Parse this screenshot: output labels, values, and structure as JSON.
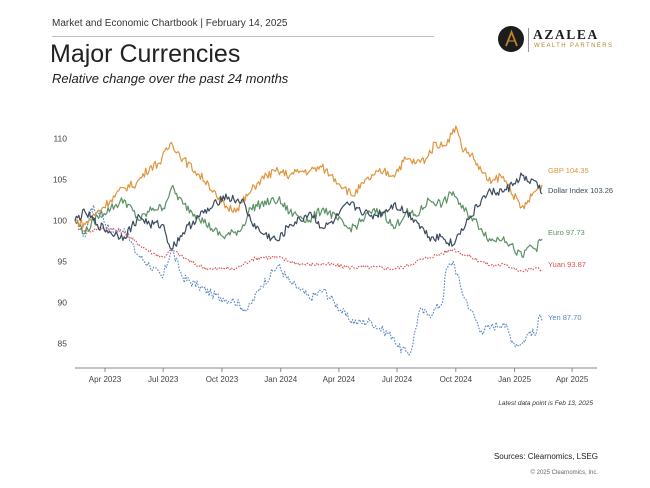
{
  "header": {
    "line": "Market and Economic Chartbook | February 14, 2025",
    "title": "Major Currencies",
    "subtitle": "Relative change over the past 24 months"
  },
  "logo": {
    "name": "AZALEA",
    "tagline": "WEALTH PARTNERS",
    "accent": "#b8842e"
  },
  "footer": {
    "footnote": "Latest data point is Feb 13, 2025",
    "sources": "Sources: Clearnomics, LSEG",
    "copyright": "© 2025 Clearnomics, Inc."
  },
  "chart_data": {
    "type": "line",
    "x_range": [
      "2023-02-13",
      "2025-05-10"
    ],
    "ylim": [
      82,
      112
    ],
    "yticks": [
      85,
      90,
      95,
      100,
      105,
      110
    ],
    "xticks": [
      {
        "date": "2023-04-01",
        "label": "Apr 2023"
      },
      {
        "date": "2023-07-01",
        "label": "Jul 2023"
      },
      {
        "date": "2023-10-01",
        "label": "Oct 2023"
      },
      {
        "date": "2024-01-01",
        "label": "Jan 2024"
      },
      {
        "date": "2024-04-01",
        "label": "Apr 2024"
      },
      {
        "date": "2024-07-01",
        "label": "Jul 2024"
      },
      {
        "date": "2024-10-01",
        "label": "Oct 2024"
      },
      {
        "date": "2025-01-01",
        "label": "Jan 2025"
      },
      {
        "date": "2025-04-01",
        "label": "Apr 2025"
      }
    ],
    "grid": false,
    "legend": "end labels",
    "series": [
      {
        "name": "GBP",
        "end_label": "GBP 104.35",
        "color": "#e0953f",
        "style": "solid",
        "points": [
          [
            "2023-02-13",
            100
          ],
          [
            "2023-03-01",
            99.5
          ],
          [
            "2023-03-20",
            101
          ],
          [
            "2023-04-10",
            102.5
          ],
          [
            "2023-05-01",
            104
          ],
          [
            "2023-05-20",
            104.5
          ],
          [
            "2023-06-10",
            106.5
          ],
          [
            "2023-06-25",
            107
          ],
          [
            "2023-07-14",
            109.5
          ],
          [
            "2023-08-01",
            107.5
          ],
          [
            "2023-08-20",
            106
          ],
          [
            "2023-09-10",
            104.5
          ],
          [
            "2023-09-25",
            102.5
          ],
          [
            "2023-10-10",
            101.5
          ],
          [
            "2023-10-25",
            101.5
          ],
          [
            "2023-11-10",
            103
          ],
          [
            "2023-11-25",
            104.5
          ],
          [
            "2023-12-10",
            105.5
          ],
          [
            "2023-12-28",
            106
          ],
          [
            "2024-01-15",
            105.5
          ],
          [
            "2024-01-31",
            106
          ],
          [
            "2024-02-15",
            106
          ],
          [
            "2024-03-05",
            106.5
          ],
          [
            "2024-03-20",
            105.5
          ],
          [
            "2024-04-10",
            104
          ],
          [
            "2024-04-22",
            103
          ],
          [
            "2024-05-10",
            104.5
          ],
          [
            "2024-05-25",
            105.5
          ],
          [
            "2024-06-10",
            106
          ],
          [
            "2024-06-25",
            105.5
          ],
          [
            "2024-07-15",
            107.5
          ],
          [
            "2024-07-31",
            107
          ],
          [
            "2024-08-15",
            107.5
          ],
          [
            "2024-08-31",
            109.5
          ],
          [
            "2024-09-10",
            109
          ],
          [
            "2024-09-25",
            110.5
          ],
          [
            "2024-10-01",
            111.5
          ],
          [
            "2024-10-10",
            109
          ],
          [
            "2024-10-25",
            108
          ],
          [
            "2024-11-10",
            106
          ],
          [
            "2024-11-25",
            104.5
          ],
          [
            "2024-12-10",
            105.5
          ],
          [
            "2024-12-25",
            104
          ],
          [
            "2025-01-10",
            101.5
          ],
          [
            "2025-01-20",
            102
          ],
          [
            "2025-02-01",
            103.5
          ],
          [
            "2025-02-13",
            104.35
          ]
        ]
      },
      {
        "name": "Dollar Index",
        "end_label": "Dollar Index 103.26",
        "color": "#3b4a5e",
        "style": "solid",
        "points": [
          [
            "2023-02-13",
            100
          ],
          [
            "2023-03-01",
            101
          ],
          [
            "2023-03-20",
            99.5
          ],
          [
            "2023-04-10",
            98.5
          ],
          [
            "2023-05-01",
            98
          ],
          [
            "2023-05-25",
            100.5
          ],
          [
            "2023-06-10",
            99.5
          ],
          [
            "2023-06-30",
            99.5
          ],
          [
            "2023-07-14",
            96.5
          ],
          [
            "2023-08-01",
            98.5
          ],
          [
            "2023-08-25",
            100.5
          ],
          [
            "2023-09-15",
            101.5
          ],
          [
            "2023-10-03",
            103
          ],
          [
            "2023-10-20",
            102.5
          ],
          [
            "2023-11-01",
            102.5
          ],
          [
            "2023-11-15",
            100
          ],
          [
            "2023-12-01",
            98.5
          ],
          [
            "2023-12-28",
            97.5
          ],
          [
            "2024-01-15",
            99.5
          ],
          [
            "2024-02-01",
            100
          ],
          [
            "2024-02-15",
            101
          ],
          [
            "2024-03-08",
            99
          ],
          [
            "2024-03-25",
            100
          ],
          [
            "2024-04-16",
            102
          ],
          [
            "2024-05-01",
            101.5
          ],
          [
            "2024-05-20",
            100.5
          ],
          [
            "2024-06-10",
            101
          ],
          [
            "2024-06-26",
            102
          ],
          [
            "2024-07-15",
            101
          ],
          [
            "2024-07-31",
            100
          ],
          [
            "2024-08-20",
            98
          ],
          [
            "2024-09-10",
            98
          ],
          [
            "2024-09-27",
            97
          ],
          [
            "2024-10-10",
            99
          ],
          [
            "2024-10-25",
            100.5
          ],
          [
            "2024-11-10",
            102.5
          ],
          [
            "2024-11-25",
            103.5
          ],
          [
            "2024-12-15",
            103.5
          ],
          [
            "2024-12-31",
            104.5
          ],
          [
            "2025-01-13",
            105.5
          ],
          [
            "2025-01-25",
            104.5
          ],
          [
            "2025-02-03",
            104.8
          ],
          [
            "2025-02-13",
            103.26
          ]
        ]
      },
      {
        "name": "Euro",
        "end_label": "Euro 97.73",
        "color": "#5c9166",
        "style": "solid",
        "points": [
          [
            "2023-02-13",
            100
          ],
          [
            "2023-03-01",
            98.5
          ],
          [
            "2023-03-20",
            100.5
          ],
          [
            "2023-04-10",
            101.5
          ],
          [
            "2023-05-01",
            102.5
          ],
          [
            "2023-05-25",
            100
          ],
          [
            "2023-06-15",
            101.5
          ],
          [
            "2023-07-01",
            101.5
          ],
          [
            "2023-07-14",
            104
          ],
          [
            "2023-08-01",
            102
          ],
          [
            "2023-08-25",
            100.5
          ],
          [
            "2023-09-15",
            99
          ],
          [
            "2023-10-03",
            98
          ],
          [
            "2023-10-20",
            98.5
          ],
          [
            "2023-11-01",
            99
          ],
          [
            "2023-11-15",
            101.5
          ],
          [
            "2023-12-01",
            102
          ],
          [
            "2023-12-28",
            102.5
          ],
          [
            "2024-01-15",
            101
          ],
          [
            "2024-02-01",
            100.5
          ],
          [
            "2024-02-15",
            100
          ],
          [
            "2024-03-08",
            101.5
          ],
          [
            "2024-04-16",
            99
          ],
          [
            "2024-05-01",
            99.5
          ],
          [
            "2024-05-20",
            101
          ],
          [
            "2024-06-10",
            101
          ],
          [
            "2024-06-26",
            99
          ],
          [
            "2024-07-15",
            101
          ],
          [
            "2024-07-31",
            100.5
          ],
          [
            "2024-08-20",
            102.5
          ],
          [
            "2024-09-10",
            102
          ],
          [
            "2024-09-27",
            103.5
          ],
          [
            "2024-10-10",
            101.5
          ],
          [
            "2024-10-25",
            100.5
          ],
          [
            "2024-11-10",
            99
          ],
          [
            "2024-11-25",
            97.5
          ],
          [
            "2024-12-15",
            98
          ],
          [
            "2024-12-31",
            96.5
          ],
          [
            "2025-01-13",
            95.5
          ],
          [
            "2025-01-25",
            97
          ],
          [
            "2025-02-03",
            96.5
          ],
          [
            "2025-02-13",
            97.73
          ]
        ]
      },
      {
        "name": "Yuan",
        "end_label": "Yuan 93.87",
        "color": "#d9534f",
        "style": "dotted",
        "points": [
          [
            "2023-02-13",
            100
          ],
          [
            "2023-03-01",
            98.5
          ],
          [
            "2023-03-20",
            99
          ],
          [
            "2023-04-10",
            99
          ],
          [
            "2023-05-01",
            98.5
          ],
          [
            "2023-05-25",
            97
          ],
          [
            "2023-06-15",
            96
          ],
          [
            "2023-07-01",
            95.5
          ],
          [
            "2023-07-14",
            96.5
          ],
          [
            "2023-08-01",
            95.5
          ],
          [
            "2023-08-25",
            94.5
          ],
          [
            "2023-09-15",
            94
          ],
          [
            "2023-10-03",
            94.2
          ],
          [
            "2023-10-20",
            94
          ],
          [
            "2023-11-01",
            94.5
          ],
          [
            "2023-11-15",
            95.2
          ],
          [
            "2023-12-01",
            95.5
          ],
          [
            "2023-12-28",
            95.5
          ],
          [
            "2024-01-15",
            95
          ],
          [
            "2024-02-01",
            94.7
          ],
          [
            "2024-02-15",
            94.6
          ],
          [
            "2024-03-08",
            94.7
          ],
          [
            "2024-04-16",
            94.3
          ],
          [
            "2024-05-20",
            94.3
          ],
          [
            "2024-06-26",
            94.1
          ],
          [
            "2024-07-15",
            94.4
          ],
          [
            "2024-07-31",
            95
          ],
          [
            "2024-08-20",
            95.5
          ],
          [
            "2024-09-10",
            96
          ],
          [
            "2024-09-27",
            96.5
          ],
          [
            "2024-10-10",
            96
          ],
          [
            "2024-10-25",
            95.5
          ],
          [
            "2024-11-10",
            95
          ],
          [
            "2024-11-25",
            94.5
          ],
          [
            "2024-12-15",
            94.6
          ],
          [
            "2024-12-31",
            94.2
          ],
          [
            "2025-01-13",
            93.8
          ],
          [
            "2025-01-25",
            94
          ],
          [
            "2025-02-03",
            94.2
          ],
          [
            "2025-02-13",
            93.87
          ]
        ]
      },
      {
        "name": "Yen",
        "end_label": "Yen 87.70",
        "color": "#5a86c2",
        "style": "dotted",
        "points": [
          [
            "2023-02-13",
            100
          ],
          [
            "2023-03-01",
            98
          ],
          [
            "2023-03-10",
            101.5
          ],
          [
            "2023-03-24",
            101
          ],
          [
            "2023-04-10",
            98.5
          ],
          [
            "2023-05-01",
            99
          ],
          [
            "2023-05-20",
            96
          ],
          [
            "2023-06-10",
            94.5
          ],
          [
            "2023-06-30",
            93
          ],
          [
            "2023-07-14",
            96.5
          ],
          [
            "2023-08-01",
            93
          ],
          [
            "2023-08-25",
            92
          ],
          [
            "2023-09-15",
            91
          ],
          [
            "2023-10-03",
            90.5
          ],
          [
            "2023-10-20",
            90.2
          ],
          [
            "2023-11-10",
            89
          ],
          [
            "2023-12-01",
            92
          ],
          [
            "2023-12-28",
            94.5
          ],
          [
            "2024-01-15",
            92.5
          ],
          [
            "2024-02-01",
            91.5
          ],
          [
            "2024-02-15",
            90.5
          ],
          [
            "2024-03-08",
            91.5
          ],
          [
            "2024-03-25",
            90
          ],
          [
            "2024-04-16",
            88
          ],
          [
            "2024-05-01",
            87.5
          ],
          [
            "2024-05-20",
            87.7
          ],
          [
            "2024-06-10",
            86.5
          ],
          [
            "2024-06-26",
            85.8
          ],
          [
            "2024-07-03",
            84.5
          ],
          [
            "2024-07-15",
            84
          ],
          [
            "2024-07-22",
            83.8
          ],
          [
            "2024-08-05",
            89
          ],
          [
            "2024-08-20",
            88.5
          ],
          [
            "2024-09-10",
            90
          ],
          [
            "2024-09-16",
            94
          ],
          [
            "2024-09-27",
            95
          ],
          [
            "2024-10-10",
            91.5
          ],
          [
            "2024-10-25",
            89
          ],
          [
            "2024-11-10",
            86.5
          ],
          [
            "2024-11-25",
            87
          ],
          [
            "2024-12-15",
            87.5
          ],
          [
            "2024-12-31",
            85
          ],
          [
            "2025-01-13",
            85
          ],
          [
            "2025-01-25",
            86.5
          ],
          [
            "2025-02-03",
            86
          ],
          [
            "2025-02-10",
            88.5
          ],
          [
            "2025-02-13",
            87.7
          ]
        ]
      }
    ]
  }
}
